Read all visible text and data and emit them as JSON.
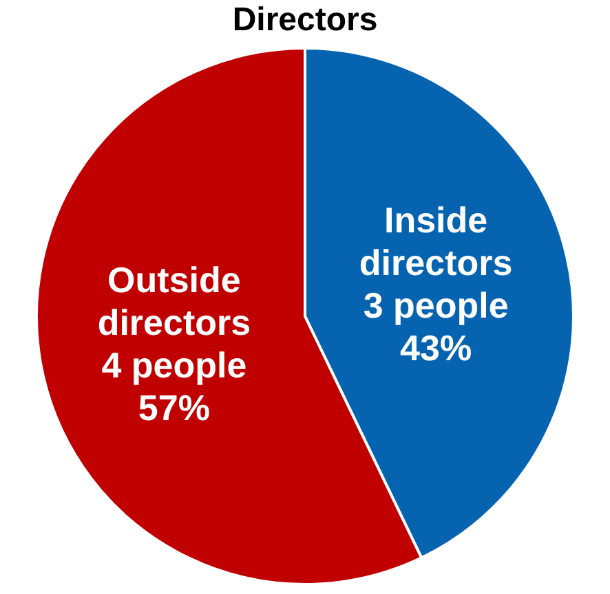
{
  "chart_data": {
    "type": "pie",
    "title": "Directors",
    "categories": [
      "Inside directors",
      "Outside directors"
    ],
    "values": [
      3,
      4
    ],
    "value_labels": [
      "3 people\n43%",
      "4 people\n57%"
    ],
    "colors": [
      "#0563b0",
      "#c00000"
    ],
    "legend": false
  }
}
